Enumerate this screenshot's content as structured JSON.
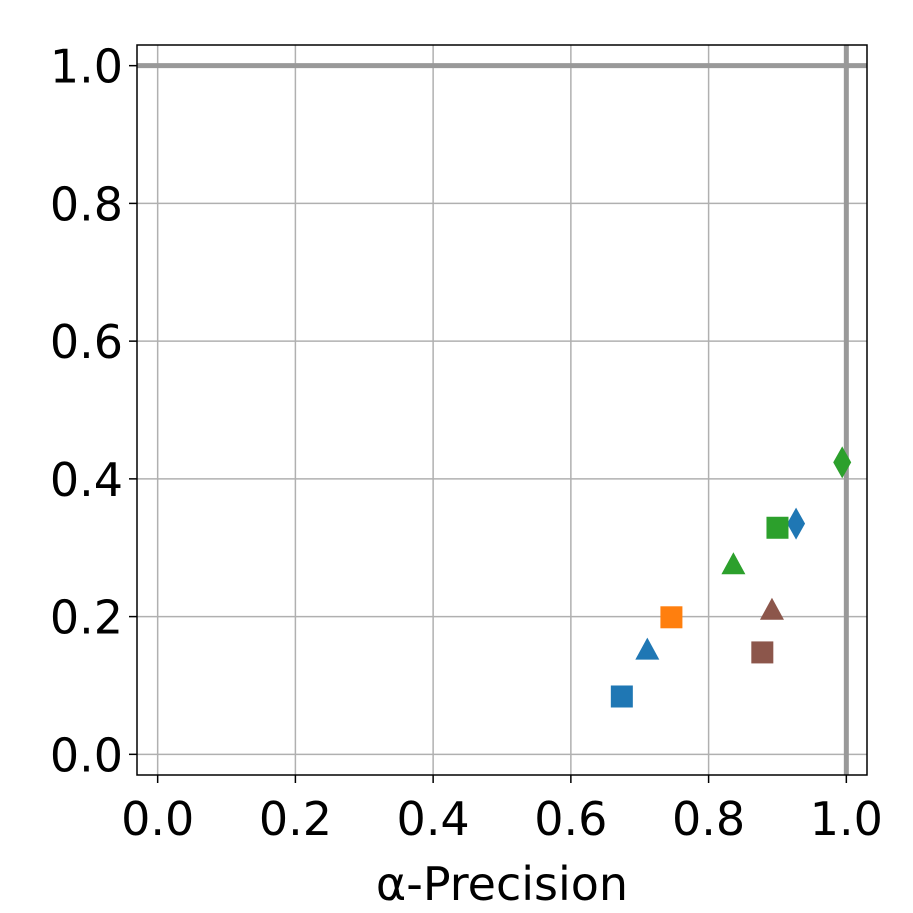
{
  "chart_data": {
    "type": "scatter",
    "xlabel": "α-Precision",
    "xlim": [
      -0.03,
      1.03
    ],
    "ylim": [
      -0.03,
      1.03
    ],
    "xticks": [
      {
        "value": 0,
        "label": "0.0"
      },
      0.2,
      0.4,
      0.6,
      0.8,
      {
        "value": 1,
        "label": "1.0"
      }
    ],
    "yticks": [
      {
        "value": 0,
        "label": "0.0"
      },
      0.2,
      0.4,
      0.6,
      0.8,
      {
        "value": 1,
        "label": "1.0"
      }
    ],
    "grid": true,
    "hlines": [
      1
    ],
    "vlines": [
      1
    ],
    "series": [
      {
        "color": "#1f77b4",
        "markers": [
          "square",
          "triangle",
          "diamond"
        ],
        "x": [
          0.674,
          0.711,
          0.927
        ],
        "y": [
          0.084,
          0.152,
          0.335
        ]
      },
      {
        "color": "#ff7f0e",
        "markers": [
          "square"
        ],
        "x": [
          0.746
        ],
        "y": [
          0.199
        ]
      },
      {
        "color": "#2ca02c",
        "markers": [
          "triangle",
          "square",
          "diamond"
        ],
        "x": [
          0.836,
          0.9,
          0.994
        ],
        "y": [
          0.276,
          0.329,
          0.424
        ]
      },
      {
        "color": "#8c564b",
        "markers": [
          "triangle",
          "square"
        ],
        "x": [
          0.892,
          0.878
        ],
        "y": [
          0.21,
          0.148
        ]
      }
    ]
  }
}
